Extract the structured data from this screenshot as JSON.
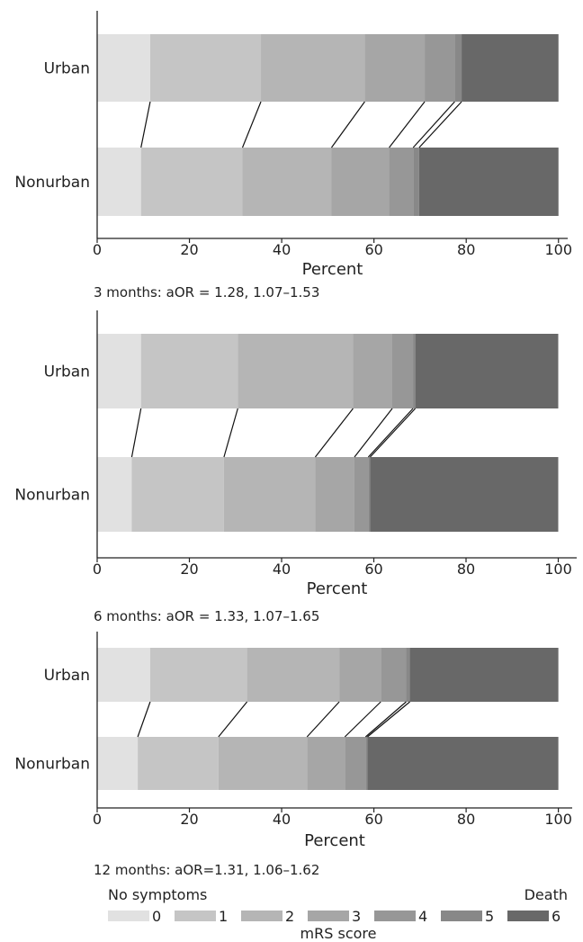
{
  "chart_data": [
    {
      "type": "bar",
      "stacked": true,
      "orientation": "horizontal",
      "categories": [
        "Urban",
        "Nonurban"
      ],
      "series": [
        {
          "name": "0",
          "values": [
            11.5,
            9.5
          ]
        },
        {
          "name": "1",
          "values": [
            24.0,
            22.0
          ]
        },
        {
          "name": "2",
          "values": [
            22.5,
            19.3
          ]
        },
        {
          "name": "3",
          "values": [
            13.0,
            12.5
          ]
        },
        {
          "name": "4",
          "values": [
            6.5,
            5.2
          ]
        },
        {
          "name": "5",
          "values": [
            1.5,
            1.3
          ]
        },
        {
          "name": "6",
          "values": [
            21.0,
            30.2
          ]
        }
      ],
      "xlabel": "Percent",
      "xlim": [
        0,
        102
      ],
      "xticks": [
        0,
        20,
        40,
        60,
        80,
        100
      ],
      "caption": "3 months: aOR = 1.28, 1.07–1.53"
    },
    {
      "type": "bar",
      "stacked": true,
      "orientation": "horizontal",
      "categories": [
        "Urban",
        "Nonurban"
      ],
      "series": [
        {
          "name": "0",
          "values": [
            9.5,
            7.5
          ]
        },
        {
          "name": "1",
          "values": [
            21.0,
            20.0
          ]
        },
        {
          "name": "2",
          "values": [
            25.0,
            19.8
          ]
        },
        {
          "name": "3",
          "values": [
            8.5,
            8.5
          ]
        },
        {
          "name": "4",
          "values": [
            4.5,
            3.0
          ]
        },
        {
          "name": "5",
          "values": [
            0.5,
            0.4
          ]
        },
        {
          "name": "6",
          "values": [
            31.0,
            40.8
          ]
        }
      ],
      "xlabel": "Percent",
      "xlim": [
        0,
        104
      ],
      "xticks": [
        0,
        20,
        40,
        60,
        80,
        100
      ],
      "caption": "6 months: aOR = 1.33, 1.07–1.65"
    },
    {
      "type": "bar",
      "stacked": true,
      "orientation": "horizontal",
      "categories": [
        "Urban",
        "Nonurban"
      ],
      "series": [
        {
          "name": "0",
          "values": [
            11.5,
            8.8
          ]
        },
        {
          "name": "1",
          "values": [
            21.0,
            17.5
          ]
        },
        {
          "name": "2",
          "values": [
            20.0,
            19.2
          ]
        },
        {
          "name": "3",
          "values": [
            9.0,
            8.2
          ]
        },
        {
          "name": "4",
          "values": [
            5.5,
            4.5
          ]
        },
        {
          "name": "5",
          "values": [
            0.8,
            0.4
          ]
        },
        {
          "name": "6",
          "values": [
            32.2,
            41.4
          ]
        }
      ],
      "xlabel": "Percent",
      "xlim": [
        0,
        103
      ],
      "xticks": [
        0,
        20,
        40,
        60,
        80,
        100
      ],
      "caption": "12 months: aOR=1.31, 1.06–1.62"
    }
  ],
  "legend": {
    "left_note": "No symptoms",
    "right_note": "Death",
    "title": "mRS score",
    "items": [
      "0",
      "1",
      "2",
      "3",
      "4",
      "5",
      "6"
    ]
  },
  "colors": {
    "segments": [
      "#e1e1e1",
      "#c5c5c5",
      "#b5b5b5",
      "#a6a6a6",
      "#979797",
      "#888888",
      "#686868"
    ],
    "axis": "#222222",
    "connector": "#111111"
  }
}
